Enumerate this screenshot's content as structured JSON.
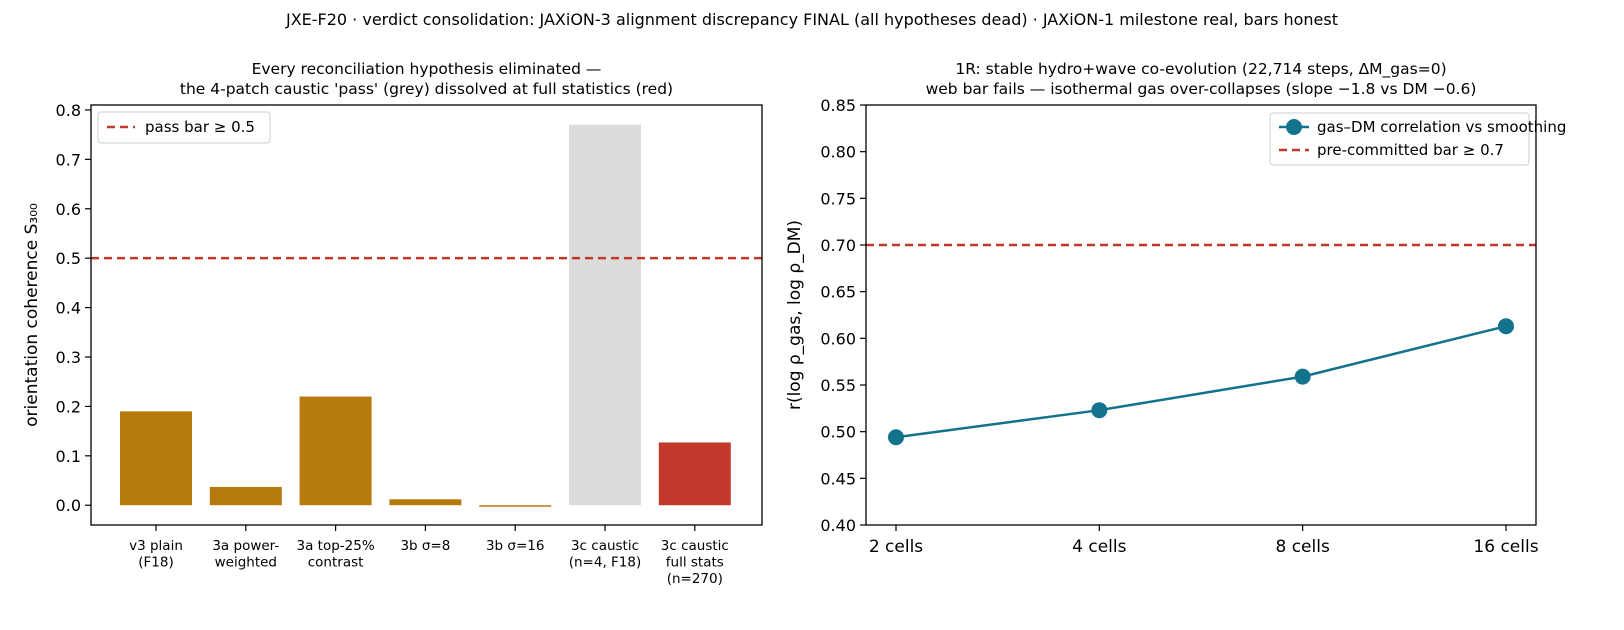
{
  "suptitle": "JXE-F20 · verdict consolidation: JAXiON-3 alignment discrepancy FINAL (all hypotheses dead) · JAXiON-1 milestone real, bars honest",
  "colors": {
    "ochre": "#b5790d",
    "grey": "#dcdcdc",
    "red": "#c0392b",
    "dashed": "#c0392b",
    "teal": "#13728c"
  },
  "chart_data": [
    {
      "type": "bar",
      "title_lines": [
        "Every reconciliation hypothesis eliminated —",
        "the 4-patch caustic 'pass' (grey) dissolved at full statistics (red)"
      ],
      "xlabel": "",
      "ylabel": "orientation coherence S₃₀₀",
      "ylim": [
        -0.04,
        0.81
      ],
      "yticks": [
        "0.0",
        "0.1",
        "0.2",
        "0.3",
        "0.4",
        "0.5",
        "0.6",
        "0.7",
        "0.8"
      ],
      "categories": [
        [
          "v3 plain",
          "(F18)"
        ],
        [
          "3a power-",
          "weighted"
        ],
        [
          "3a top-25%",
          "contrast"
        ],
        [
          "3b σ=8"
        ],
        [
          "3b σ=16"
        ],
        [
          "3c caustic",
          "(n=4, F18)"
        ],
        [
          "3c caustic",
          "full stats",
          "(n=270)"
        ]
      ],
      "values": [
        0.19,
        0.037,
        0.22,
        0.012,
        -0.003,
        0.77,
        0.127
      ],
      "bar_colors": [
        "ochre",
        "ochre",
        "ochre",
        "ochre",
        "ochre",
        "grey",
        "red"
      ],
      "hline": {
        "y": 0.5,
        "label": "pass bar ≥ 0.5"
      },
      "legend": "top-left",
      "grid": false
    },
    {
      "type": "line",
      "title_lines": [
        "1R: stable hydro+wave co-evolution (22,714 steps, ΔM_gas=0)",
        "web bar fails — isothermal gas over-collapses (slope −1.8 vs DM −0.6)"
      ],
      "xlabel": "",
      "ylabel": "r(log ρ_gas, log ρ_DM)",
      "ylim": [
        0.4,
        0.85
      ],
      "yticks": [
        "0.40",
        "0.45",
        "0.50",
        "0.55",
        "0.60",
        "0.65",
        "0.70",
        "0.75",
        "0.80",
        "0.85"
      ],
      "x": [
        "2 cells",
        "4 cells",
        "8 cells",
        "16 cells"
      ],
      "series": [
        {
          "name": "gas–DM correlation vs smoothing",
          "values": [
            0.494,
            0.523,
            0.559,
            0.613
          ]
        }
      ],
      "hline": {
        "y": 0.7,
        "label": "pre-committed bar ≥ 0.7"
      },
      "legend": "top-right",
      "grid": false
    }
  ]
}
